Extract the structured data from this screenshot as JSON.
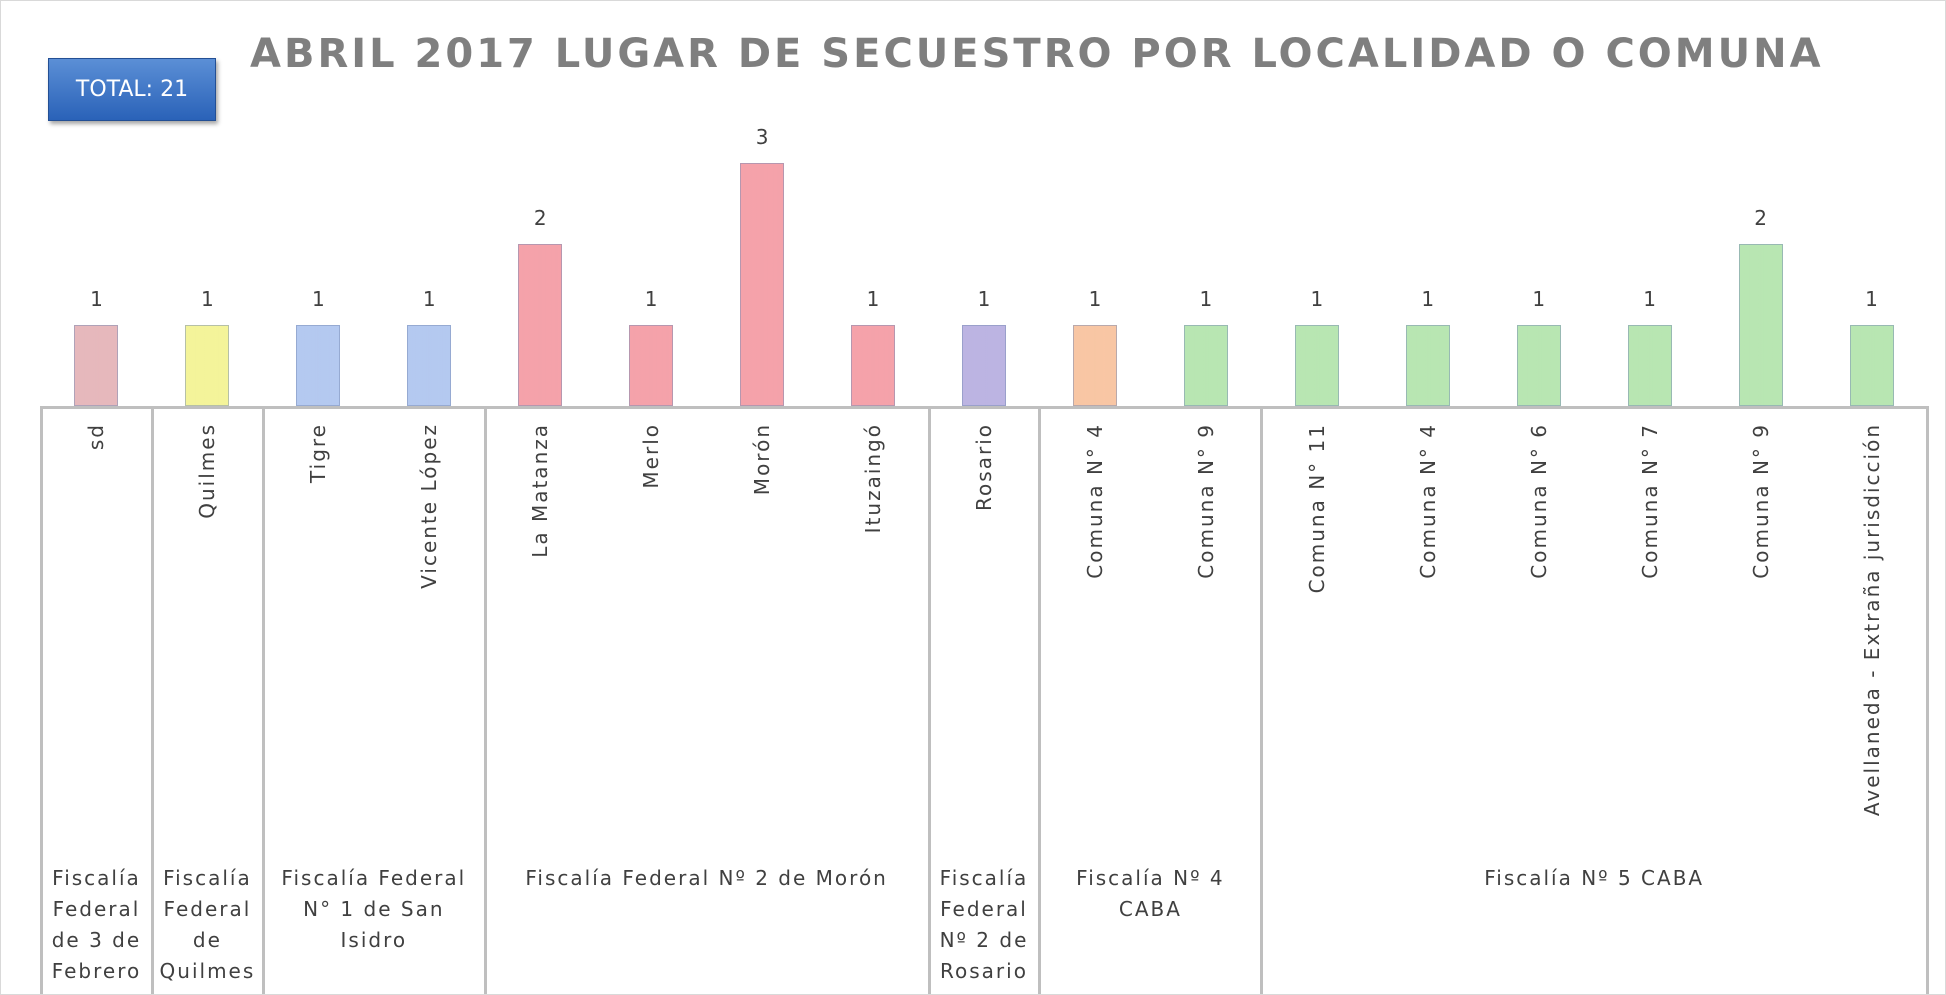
{
  "chart_data": {
    "type": "bar",
    "title": "ABRIL 2017 LUGAR DE SECUESTRO POR LOCALIDAD O COMUNA",
    "total_label": "TOTAL: 21",
    "groups": [
      {
        "label": "Fiscalía Federal de 3 de Febrero",
        "categories": [
          "sd"
        ],
        "values": [
          1
        ],
        "colors": [
          "#e6b8bc"
        ]
      },
      {
        "label": "Fiscalía Federal de Quilmes",
        "categories": [
          "Quilmes"
        ],
        "values": [
          1
        ],
        "colors": [
          "#f4f49a"
        ]
      },
      {
        "label": "Fiscalía Federal N° 1 de San Isidro",
        "categories": [
          "Tigre",
          "Vicente López"
        ],
        "values": [
          1,
          1
        ],
        "colors": [
          "#b4c9f0",
          "#b4c9f0"
        ]
      },
      {
        "label": "Fiscalía Federal Nº 2 de Morón",
        "categories": [
          "La Matanza",
          "Merlo",
          "Morón",
          "Ituzaingó"
        ],
        "values": [
          2,
          1,
          3,
          1
        ],
        "colors": [
          "#f5a2aa",
          "#f5a2aa",
          "#f5a2aa",
          "#f5a2aa"
        ]
      },
      {
        "label": "Fiscalía Federal Nº 2 de Rosario",
        "categories": [
          "Rosario"
        ],
        "values": [
          1
        ],
        "colors": [
          "#bcb4e2"
        ]
      },
      {
        "label": "Fiscalía Nº 4 CABA",
        "categories": [
          "Comuna N° 4",
          "Comuna N° 9"
        ],
        "values": [
          1,
          1
        ],
        "colors": [
          "#f8c6a4",
          "#b8e6b2"
        ]
      },
      {
        "label": "Fiscalía Nº 5 CABA",
        "categories": [
          "Comuna N° 11",
          "Comuna N° 4",
          "Comuna N° 6",
          "Comuna N° 7",
          "Comuna N° 9",
          "Avellaneda - Extraña jurisdicción"
        ],
        "values": [
          1,
          1,
          1,
          1,
          2,
          1
        ],
        "colors": [
          "#b8e6b2",
          "#b8e6b2",
          "#b8e6b2",
          "#b8e6b2",
          "#b8e6b2",
          "#b8e6b2"
        ]
      }
    ]
  }
}
